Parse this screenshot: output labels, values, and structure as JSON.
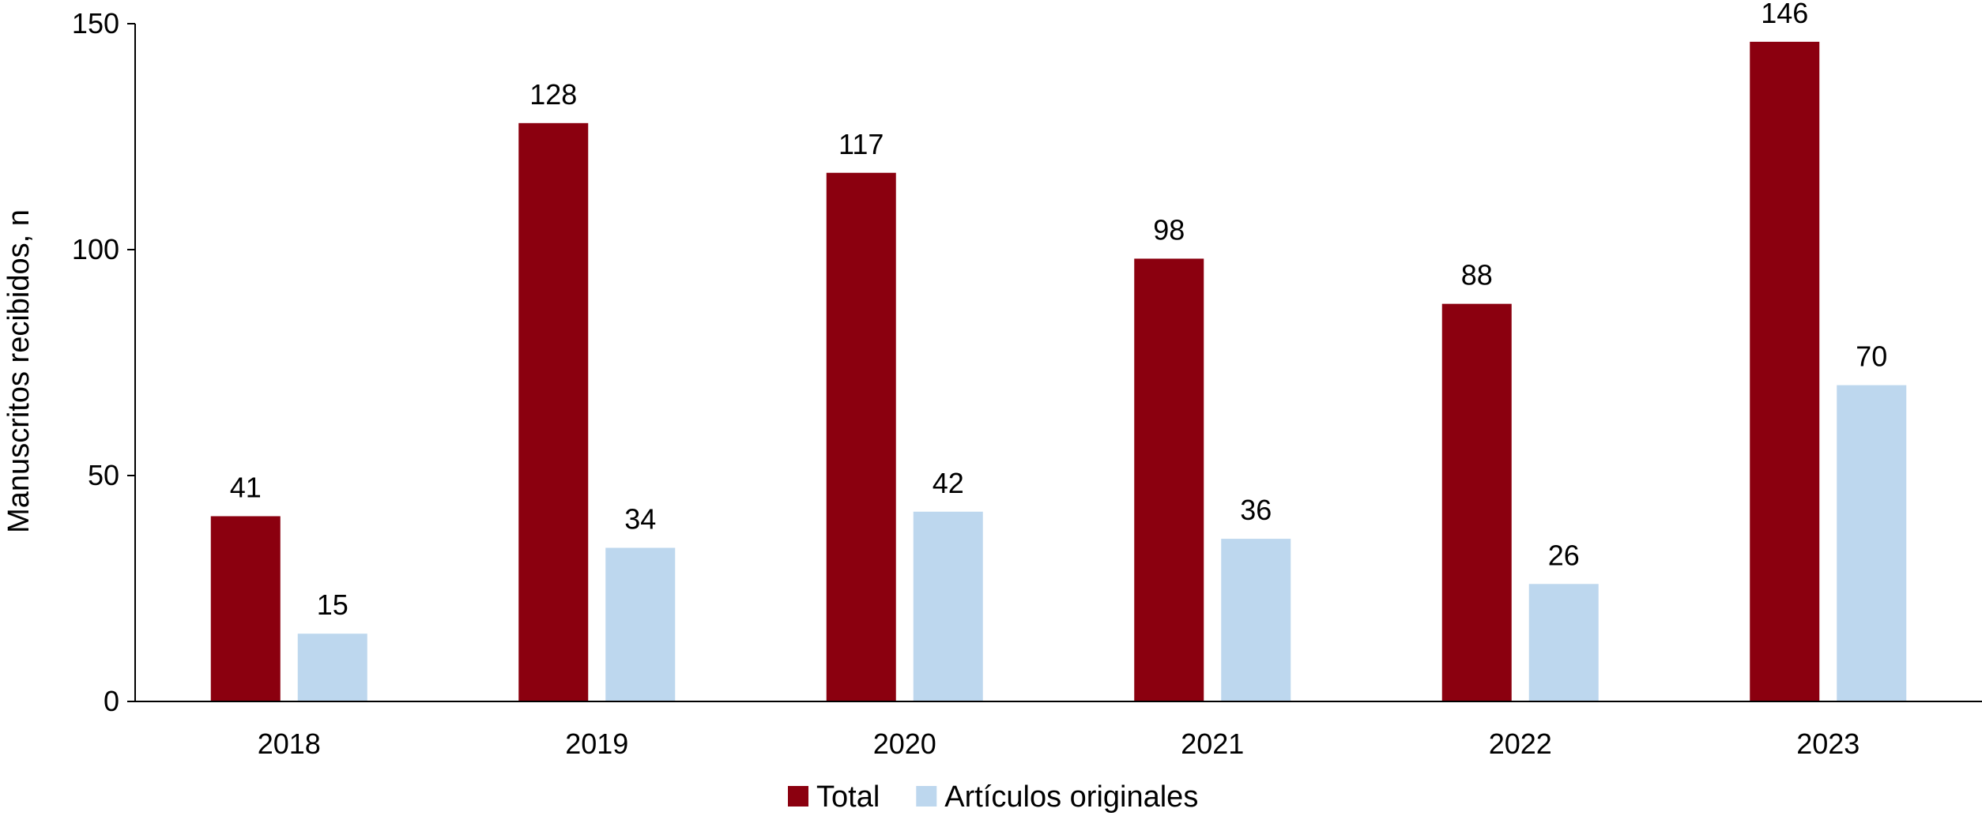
{
  "chart_data": {
    "type": "bar",
    "title": "",
    "xlabel": "",
    "ylabel": "Manuscritos recibidos, n",
    "categories": [
      "2018",
      "2019",
      "2020",
      "2021",
      "2022",
      "2023"
    ],
    "series": [
      {
        "name": "Total",
        "color": "#8B000F",
        "values": [
          41,
          128,
          117,
          98,
          88,
          146
        ]
      },
      {
        "name": "Artículos originales",
        "color": "#BDD7EE",
        "values": [
          15,
          34,
          42,
          36,
          26,
          70
        ]
      }
    ],
    "ylim": [
      0,
      150
    ],
    "yticks": [
      0,
      50,
      100,
      150
    ],
    "grid": false,
    "legend_position": "bottom-center",
    "data_labels": true
  }
}
